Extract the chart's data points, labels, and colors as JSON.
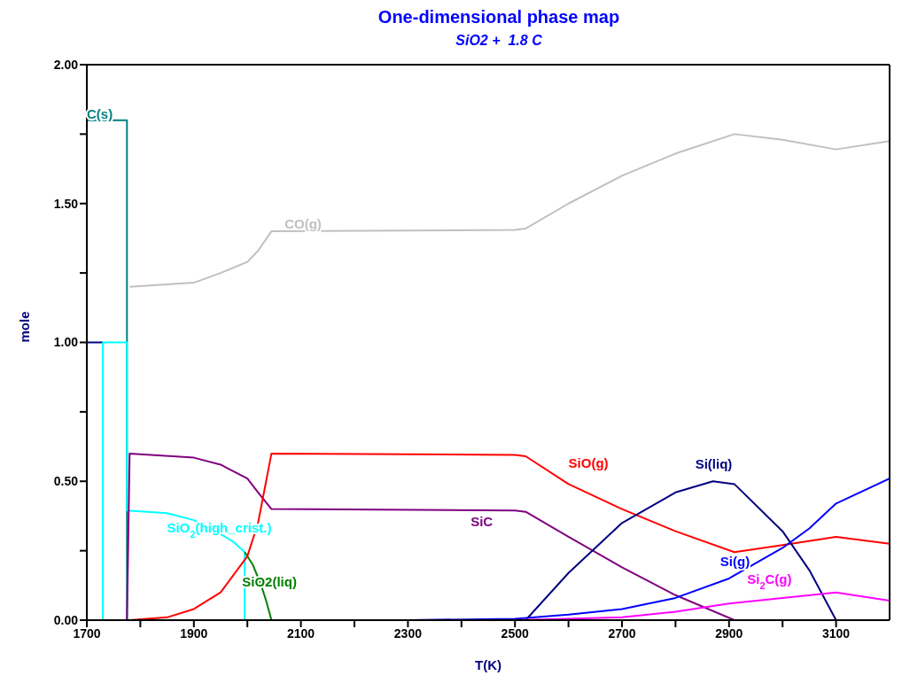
{
  "chart_data": {
    "type": "line",
    "title": "One-dimensional phase map",
    "subtitle": "SiO2 +  1.8 C",
    "xlabel": "T(K)",
    "ylabel": "mole",
    "xlim": [
      1700,
      3200
    ],
    "xticks": [
      1700,
      {
        "value": 1800,
        "label": null
      },
      1900,
      {
        "value": 2000,
        "label": null
      },
      2100,
      {
        "value": 2200,
        "label": null
      },
      2300,
      {
        "value": 2400,
        "label": null
      },
      2500,
      {
        "value": 2600,
        "label": null
      },
      2700,
      {
        "value": 2800,
        "label": null
      },
      2900,
      {
        "value": 3000,
        "label": null
      },
      3100
    ],
    "ylim": [
      0,
      2
    ],
    "yticks": [
      {
        "value": 0,
        "label": "0.00"
      },
      {
        "value": 0.25,
        "label": null
      },
      {
        "value": 0.5,
        "label": "0.50"
      },
      {
        "value": 0.75,
        "label": null
      },
      {
        "value": 1,
        "label": "1.00"
      },
      {
        "value": 1.25,
        "label": null
      },
      {
        "value": 1.5,
        "label": "1.50"
      },
      {
        "value": 1.75,
        "label": null
      },
      {
        "value": 2,
        "label": "2.00"
      }
    ],
    "grid": false,
    "legend": false,
    "marker": "none",
    "line_style": "solid",
    "series": [
      {
        "name": "C(s)",
        "color": "#008080",
        "x": [
          1700,
          1775,
          1775
        ],
        "values": [
          1.8,
          1.8,
          0
        ]
      },
      {
        "color": "#000080",
        "x": [
          1700,
          1730
        ],
        "values": [
          1,
          1
        ]
      },
      {
        "name": "SiO$_{2}$(high_crist.)",
        "color": "#00ffff",
        "x": [
          1730,
          1730,
          1775,
          1775,
          1850,
          1900,
          1950,
          1975,
          1995,
          1995
        ],
        "values": [
          0,
          1,
          1,
          0.395,
          0.385,
          0.36,
          0.31,
          0.28,
          0.245,
          0
        ]
      },
      {
        "name": "SiO2(liq)",
        "color": "#008000",
        "x": [
          1995,
          2010,
          2025,
          2035,
          2045
        ],
        "values": [
          0.245,
          0.2,
          0.13,
          0.07,
          0
        ]
      },
      {
        "name": "SiC",
        "color": "#800080",
        "x": [
          1775,
          1780,
          1900,
          1950,
          2000,
          2020,
          2045,
          2500,
          2520,
          2600,
          2700,
          2800,
          2910
        ],
        "values": [
          0,
          0.6,
          0.585,
          0.56,
          0.51,
          0.46,
          0.4,
          0.395,
          0.39,
          0.3,
          0.19,
          0.09,
          0
        ]
      },
      {
        "name": "SiO(g)",
        "color": "#ff0000",
        "x": [
          1780,
          1850,
          1900,
          1950,
          2000,
          2020,
          2045,
          2500,
          2520,
          2600,
          2700,
          2800,
          2910,
          3000,
          3100,
          3200
        ],
        "values": [
          0,
          0.01,
          0.04,
          0.1,
          0.23,
          0.35,
          0.6,
          0.595,
          0.59,
          0.49,
          0.4,
          0.32,
          0.245,
          0.27,
          0.3,
          0.275
        ]
      },
      {
        "name": "CO(g)",
        "color": "#c0c0c0",
        "x": [
          1780,
          1900,
          1950,
          2000,
          2020,
          2045,
          2500,
          2520,
          2600,
          2700,
          2800,
          2910,
          3000,
          3100,
          3200
        ],
        "values": [
          1.2,
          1.215,
          1.25,
          1.29,
          1.33,
          1.4,
          1.405,
          1.41,
          1.5,
          1.6,
          1.68,
          1.75,
          1.73,
          1.695,
          1.725
        ]
      },
      {
        "name": "Si(liq)",
        "color": "#000080",
        "x": [
          2520,
          2600,
          2700,
          2800,
          2870,
          2910,
          3000,
          3050,
          3100
        ],
        "values": [
          0,
          0.17,
          0.35,
          0.46,
          0.5,
          0.49,
          0.32,
          0.18,
          0
        ]
      },
      {
        "name": "Si(g)",
        "color": "#0000ff",
        "x": [
          2300,
          2500,
          2600,
          2700,
          2800,
          2900,
          3000,
          3050,
          3100,
          3200
        ],
        "values": [
          0,
          0.005,
          0.02,
          0.04,
          0.08,
          0.15,
          0.26,
          0.33,
          0.42,
          0.51
        ]
      },
      {
        "name": "Si$_{2}$C(g)",
        "color": "#ff00ff",
        "x": [
          2500,
          2700,
          2800,
          2900,
          3000,
          3100,
          3200
        ],
        "values": [
          0,
          0.01,
          0.03,
          0.06,
          0.08,
          0.1,
          0.07
        ]
      }
    ]
  }
}
